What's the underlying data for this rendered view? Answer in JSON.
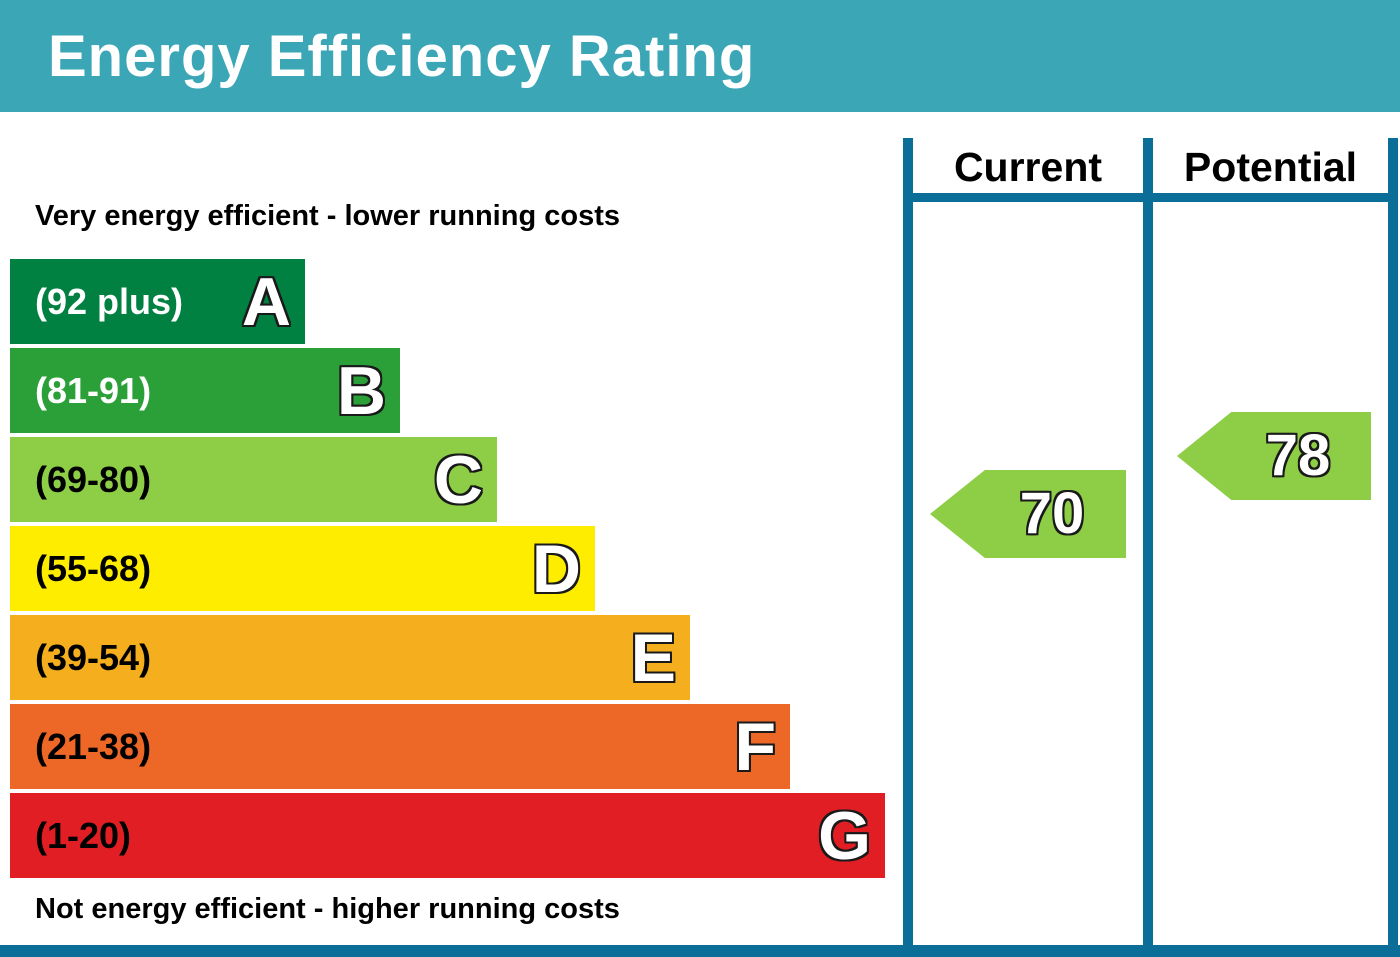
{
  "header": {
    "title": "Energy Efficiency Rating",
    "bg_color": "#3BA6B5"
  },
  "captions": {
    "top": "Very energy efficient - lower running costs",
    "bottom": "Not energy efficient - higher running costs"
  },
  "columns": {
    "current_label": "Current",
    "potential_label": "Potential",
    "border_color": "#0A6E99"
  },
  "bands": [
    {
      "letter": "A",
      "range": "(92 plus)",
      "color": "#018141"
    },
    {
      "letter": "B",
      "range": "(81-91)",
      "color": "#2BA038"
    },
    {
      "letter": "C",
      "range": "(69-80)",
      "color": "#8DCE46"
    },
    {
      "letter": "D",
      "range": "(55-68)",
      "color": "#FFED00"
    },
    {
      "letter": "E",
      "range": "(39-54)",
      "color": "#F4AE1E"
    },
    {
      "letter": "F",
      "range": "(21-38)",
      "color": "#ED6726"
    },
    {
      "letter": "G",
      "range": "(1-20)",
      "color": "#E11E23"
    }
  ],
  "ratings": {
    "current": {
      "value": "70",
      "color": "#8DCE46"
    },
    "potential": {
      "value": "78",
      "color": "#8DCE46"
    }
  },
  "chart_data": {
    "type": "bar",
    "title": "Energy Efficiency Rating",
    "categories": [
      "A",
      "B",
      "C",
      "D",
      "E",
      "F",
      "G"
    ],
    "band_ranges": [
      "92 plus",
      "81-91",
      "69-80",
      "55-68",
      "39-54",
      "21-38",
      "1-20"
    ],
    "band_colors": [
      "#018141",
      "#2BA038",
      "#8DCE46",
      "#FFED00",
      "#F4AE1E",
      "#ED6726",
      "#E11E23"
    ],
    "bar_relative_widths": [
      0.34,
      0.45,
      0.56,
      0.67,
      0.78,
      0.89,
      1.0
    ],
    "orientation": "horizontal",
    "legend": [
      "Current",
      "Potential"
    ],
    "current_rating": 70,
    "current_band": "C",
    "potential_rating": 78,
    "potential_band": "C",
    "annotations": [
      "Very energy efficient - lower running costs",
      "Not energy efficient - higher running costs"
    ]
  }
}
